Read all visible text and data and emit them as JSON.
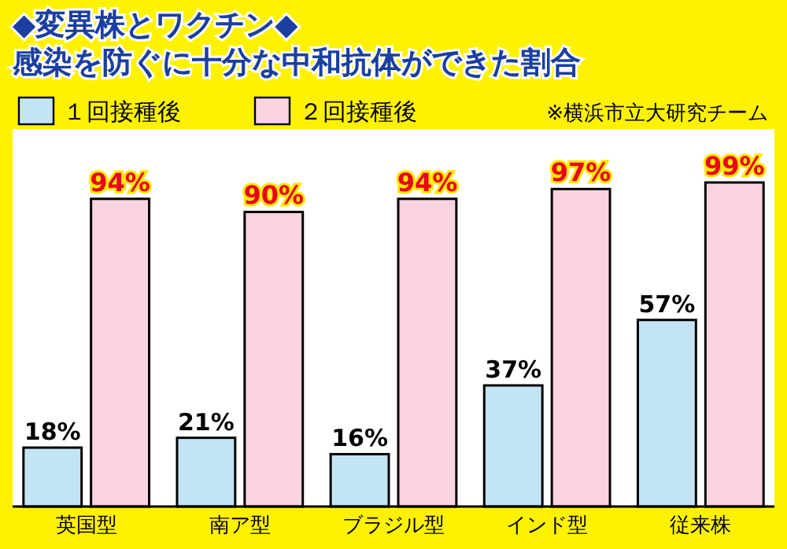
{
  "chart_data": {
    "type": "bar",
    "title": "◆変異株とワクチン◆",
    "subtitle": "感染を防ぐに十分な中和抗体ができた割合",
    "categories": [
      "英国型",
      "南ア型",
      "ブラジル型",
      "インド型",
      "従来株"
    ],
    "series": [
      {
        "name": "１回接種後",
        "color": "#c3e4f5",
        "values": [
          18,
          21,
          16,
          37,
          57
        ],
        "value_labels": [
          "18%",
          "21%",
          "16%",
          "37%",
          "57%"
        ]
      },
      {
        "name": "２回接種後",
        "color": "#f9d3e2",
        "values": [
          94,
          90,
          94,
          97,
          99
        ],
        "value_labels": [
          "94%",
          "90%",
          "94%",
          "97%",
          "99%"
        ]
      }
    ],
    "annotations": [
      "※横浜市立大研究チーム"
    ],
    "legend": "top left"
  }
}
